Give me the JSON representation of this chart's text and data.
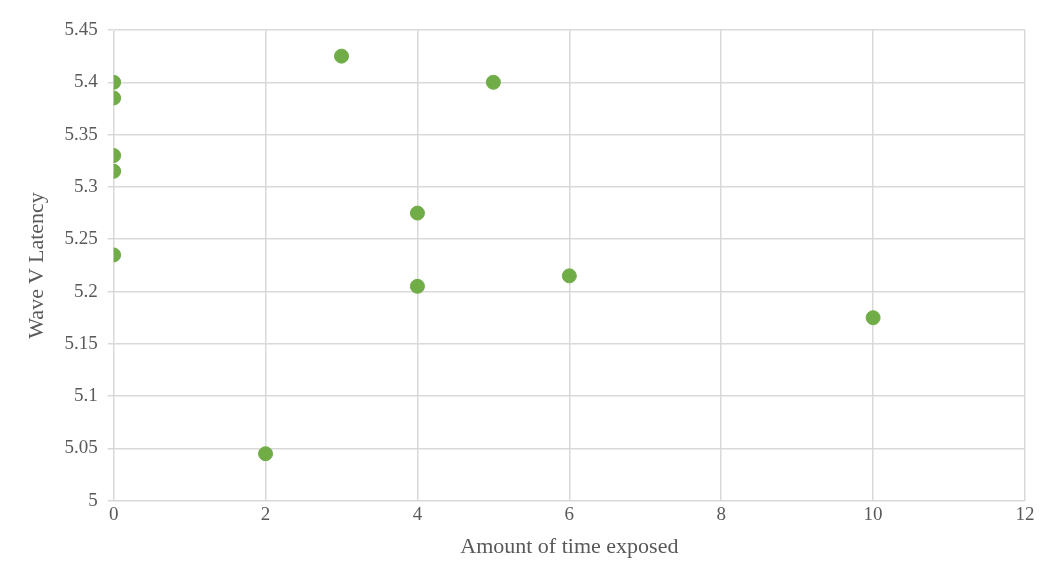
{
  "chart_data": {
    "type": "scatter",
    "xlabel": "Amount of time exposed",
    "ylabel": "Wave V Latency",
    "x": [
      0,
      0,
      0,
      0,
      0,
      2,
      3,
      4,
      4,
      5,
      6,
      10
    ],
    "values": [
      5.4,
      5.385,
      5.33,
      5.315,
      5.235,
      5.045,
      5.425,
      5.275,
      5.205,
      5.4,
      5.215,
      5.175
    ],
    "color": "#70ad47",
    "marker": "circle",
    "xlim": [
      0,
      12
    ],
    "xticks": [
      0,
      2,
      4,
      6,
      8,
      10,
      12
    ],
    "ylim": [
      5,
      5.45
    ],
    "yticks": [
      5,
      {
        "value": 5.05,
        "label": "5.05"
      },
      {
        "value": 5.1,
        "label": "5.1"
      },
      {
        "value": 5.15,
        "label": "5.15"
      },
      {
        "value": 5.2,
        "label": "5.2"
      },
      {
        "value": 5.25,
        "label": "5.25"
      },
      {
        "value": 5.3,
        "label": "5.3"
      },
      {
        "value": 5.35,
        "label": "5.35"
      },
      {
        "value": 5.4,
        "label": "5.4"
      },
      {
        "value": 5.45,
        "label": "5.45"
      }
    ],
    "grid": true,
    "legend": false
  }
}
